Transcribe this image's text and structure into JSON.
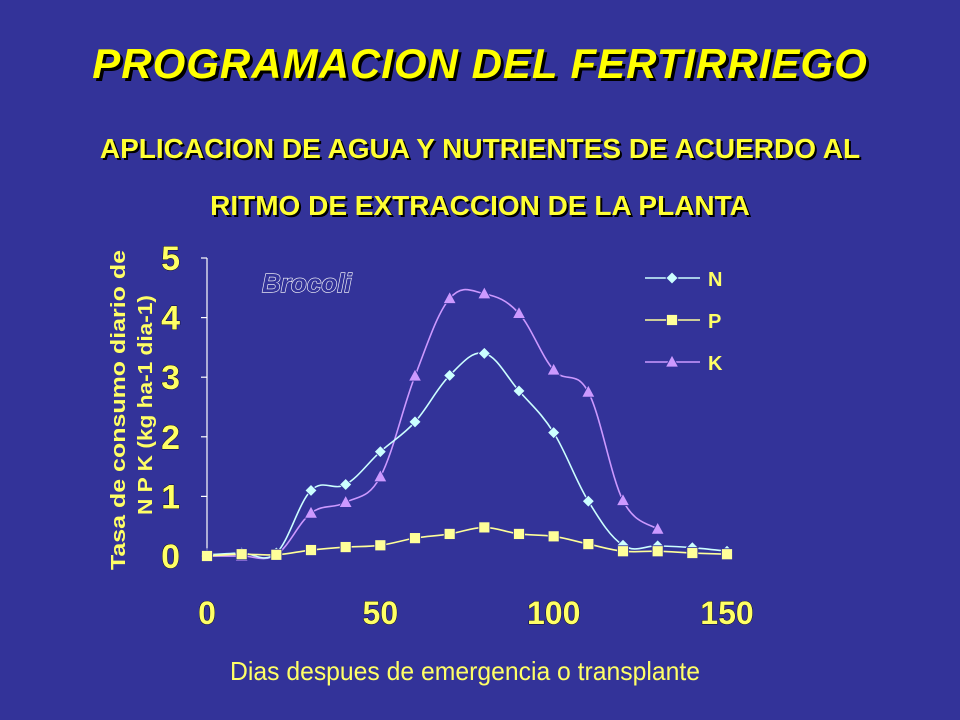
{
  "title": "PROGRAMACION DEL FERTIRRIEGO",
  "subtitle_line1": "APLICACION DE AGUA Y NUTRIENTES DE ACUERDO AL",
  "subtitle_line2": "RITMO DE EXTRACCION DE LA PLANTA",
  "colors": {
    "background": "#333399",
    "title": "#ffff00",
    "N": "#ccffff",
    "P": "#ffff99",
    "K": "#cc99ff",
    "annotation": "#333399"
  },
  "chart_data": {
    "type": "line",
    "annotation": "Brocoli",
    "xlabel": "Dias despues de emergencia o transplante",
    "ylabel_line1": "Tasa de consumo diario de",
    "ylabel_line2": "N P K (kg ha-1 dia-1)",
    "xlim": [
      0,
      150
    ],
    "ylim": [
      0,
      5
    ],
    "xticks": [
      "0",
      "50",
      "100",
      "150"
    ],
    "yticks": [
      "0",
      "1",
      "2",
      "3",
      "4",
      "5"
    ],
    "legend_position": "top-right",
    "grid": false,
    "series": [
      {
        "name": "N",
        "marker": "diamond",
        "x": [
          0,
          10,
          20,
          30,
          40,
          50,
          60,
          70,
          80,
          90,
          100,
          110,
          120,
          130,
          140,
          150
        ],
        "values": [
          0.02,
          0.05,
          0.05,
          1.1,
          1.2,
          1.75,
          2.25,
          3.03,
          3.4,
          2.77,
          2.07,
          0.92,
          0.18,
          0.17,
          0.14,
          0.08
        ]
      },
      {
        "name": "P",
        "marker": "square",
        "x": [
          0,
          10,
          20,
          30,
          40,
          50,
          60,
          70,
          80,
          90,
          100,
          110,
          120,
          130,
          140,
          150
        ],
        "values": [
          0.0,
          0.03,
          0.02,
          0.1,
          0.15,
          0.18,
          0.3,
          0.37,
          0.48,
          0.37,
          0.33,
          0.2,
          0.08,
          0.08,
          0.05,
          0.03
        ]
      },
      {
        "name": "K",
        "marker": "triangle",
        "x": [
          0,
          10,
          20,
          30,
          40,
          50,
          60,
          70,
          80,
          90,
          100,
          110,
          120,
          130
        ],
        "values": [
          0.0,
          0.0,
          0.02,
          0.72,
          0.9,
          1.33,
          3.02,
          4.32,
          4.4,
          4.07,
          3.12,
          2.75,
          0.93,
          0.45
        ]
      }
    ]
  }
}
